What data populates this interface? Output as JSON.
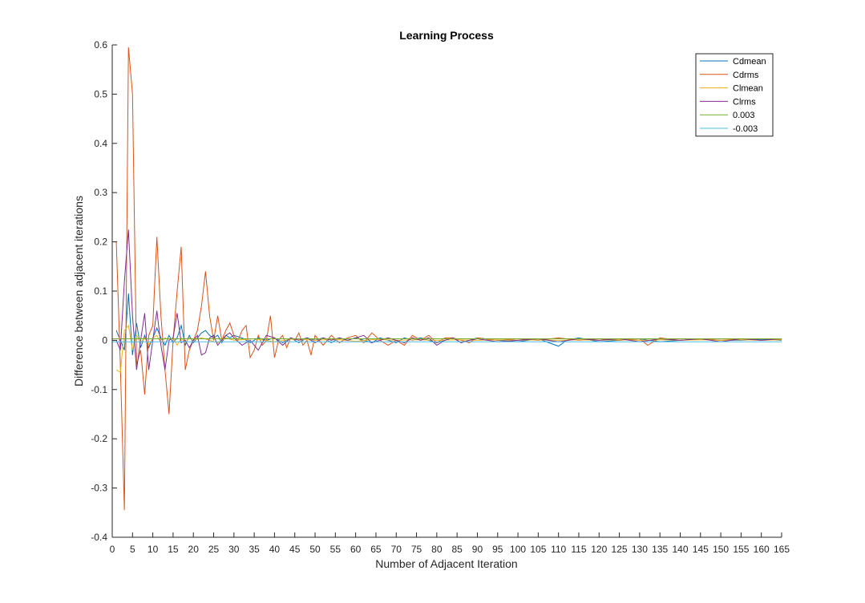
{
  "chart_data": {
    "type": "line",
    "title": "Learning Process",
    "xlabel": "Number of Adjacent Iteration",
    "ylabel": "Difference between adjacent iterations",
    "xlim": [
      0,
      165
    ],
    "ylim": [
      -0.4,
      0.6
    ],
    "xticks": [
      0,
      5,
      10,
      15,
      20,
      25,
      30,
      35,
      40,
      45,
      50,
      55,
      60,
      65,
      70,
      75,
      80,
      85,
      90,
      95,
      100,
      105,
      110,
      115,
      120,
      125,
      130,
      135,
      140,
      145,
      150,
      155,
      160,
      165
    ],
    "yticks": [
      -0.4,
      -0.3,
      -0.2,
      -0.1,
      0,
      0.1,
      0.2,
      0.3,
      0.4,
      0.5,
      0.6
    ],
    "legend_position": "top-right",
    "grid": false,
    "series": [
      {
        "name": "Cdmean",
        "color": "#0072BD",
        "x": [
          1,
          2,
          3,
          4,
          5,
          6,
          7,
          8,
          9,
          10,
          11,
          12,
          13,
          14,
          15,
          16,
          17,
          18,
          19,
          20,
          21,
          22,
          23,
          24,
          25,
          26,
          27,
          28,
          29,
          30,
          32,
          34,
          36,
          38,
          40,
          42,
          44,
          46,
          48,
          50,
          52,
          54,
          56,
          58,
          60,
          62,
          64,
          66,
          68,
          70,
          72,
          74,
          76,
          78,
          80,
          82,
          84,
          86,
          88,
          90,
          95,
          100,
          105,
          110,
          112,
          115,
          120,
          125,
          130,
          135,
          140,
          145,
          150,
          155,
          160,
          165
        ],
        "y": [
          0.02,
          0.0,
          -0.02,
          0.095,
          -0.03,
          0.035,
          -0.015,
          0.01,
          -0.015,
          0.005,
          0.025,
          0.005,
          -0.01,
          0.01,
          -0.005,
          0.005,
          0.03,
          -0.01,
          0.01,
          -0.005,
          0.005,
          0.015,
          0.02,
          0.01,
          0.005,
          0.01,
          -0.005,
          0.01,
          0.005,
          0.01,
          0.005,
          -0.005,
          0.005,
          0.0,
          0.005,
          -0.005,
          0.005,
          -0.005,
          0.005,
          0.0,
          0.005,
          -0.005,
          0.005,
          0.0,
          0.005,
          0.0,
          -0.005,
          0.005,
          0.0,
          -0.005,
          0.005,
          0.0,
          0.005,
          0.0,
          -0.005,
          0.0,
          0.005,
          -0.005,
          0.0,
          0.005,
          0.0,
          -0.003,
          0.003,
          -0.012,
          0.0,
          0.005,
          -0.003,
          0.0,
          0.003,
          -0.003,
          0.0,
          0.003,
          0.0,
          0.0,
          0.002,
          0.0
        ]
      },
      {
        "name": "Cdrms",
        "color": "#D95319",
        "x": [
          1,
          2,
          3,
          4,
          5,
          6,
          7,
          8,
          9,
          10,
          11,
          12,
          13,
          14,
          15,
          16,
          17,
          18,
          19,
          20,
          21,
          22,
          23,
          24,
          25,
          26,
          27,
          28,
          29,
          30,
          31,
          32,
          33,
          34,
          35,
          36,
          37,
          38,
          39,
          40,
          41,
          42,
          43,
          44,
          45,
          46,
          47,
          48,
          49,
          50,
          52,
          54,
          56,
          58,
          60,
          62,
          64,
          66,
          68,
          70,
          72,
          74,
          76,
          78,
          80,
          82,
          84,
          86,
          88,
          90,
          95,
          100,
          105,
          110,
          115,
          120,
          125,
          130,
          132,
          135,
          140,
          145,
          150,
          155,
          160,
          165
        ],
        "y": [
          0.2,
          -0.05,
          -0.345,
          0.595,
          0.5,
          -0.05,
          -0.02,
          -0.11,
          0.01,
          0.03,
          0.21,
          0.05,
          -0.06,
          -0.15,
          0.0,
          0.1,
          0.19,
          -0.06,
          -0.02,
          0.0,
          0.02,
          0.07,
          0.14,
          0.05,
          0.0,
          0.05,
          0.0,
          0.02,
          0.035,
          0.01,
          0.0,
          0.02,
          0.03,
          -0.035,
          -0.02,
          0.01,
          -0.01,
          0.0,
          0.05,
          -0.035,
          0.0,
          0.01,
          -0.015,
          0.005,
          0.0,
          0.015,
          -0.01,
          0.0,
          -0.03,
          0.01,
          -0.01,
          0.01,
          -0.005,
          0.005,
          0.01,
          -0.005,
          0.015,
          0.0,
          -0.01,
          0.0,
          -0.01,
          0.01,
          0.0,
          0.01,
          -0.005,
          0.005,
          0.005,
          0.0,
          -0.005,
          0.005,
          0.0,
          0.003,
          0.0,
          0.005,
          0.0,
          0.003,
          0.0,
          0.003,
          -0.01,
          0.005,
          0.0,
          0.003,
          0.0,
          0.003,
          0.0,
          0.002
        ]
      },
      {
        "name": "Clmean",
        "color": "#EDB120",
        "x": [
          1,
          2,
          3,
          4,
          5,
          6,
          7,
          8,
          9,
          10,
          11,
          12,
          13,
          14,
          15,
          16,
          17,
          18,
          19,
          20,
          22,
          24,
          26,
          28,
          30,
          35,
          40,
          45,
          50,
          55,
          60,
          65,
          70,
          75,
          80,
          85,
          90,
          95,
          100,
          105,
          110,
          115,
          120,
          125,
          130,
          135,
          140,
          145,
          150,
          155,
          160,
          165
        ],
        "y": [
          -0.06,
          -0.065,
          0.02,
          0.03,
          -0.02,
          0.01,
          -0.005,
          0.005,
          -0.01,
          0.005,
          0.01,
          -0.005,
          0.005,
          0.0,
          0.005,
          -0.01,
          0.005,
          -0.005,
          0.005,
          0.0,
          0.005,
          0.0,
          -0.005,
          0.005,
          0.0,
          0.003,
          -0.003,
          0.003,
          0.0,
          0.002,
          -0.002,
          0.002,
          0.0,
          0.001,
          0.0,
          0.001,
          0.0,
          0.001,
          0.0,
          0.001,
          0.0,
          0.001,
          0.0,
          0.001,
          0.0,
          0.001,
          0.0,
          0.001,
          0.0,
          0.001,
          0.0,
          0.001
        ]
      },
      {
        "name": "Clrms",
        "color": "#7E2F8E",
        "x": [
          1,
          2,
          3,
          4,
          5,
          6,
          7,
          8,
          9,
          10,
          11,
          12,
          13,
          14,
          15,
          16,
          17,
          18,
          19,
          20,
          21,
          22,
          23,
          24,
          25,
          26,
          27,
          28,
          29,
          30,
          32,
          34,
          36,
          38,
          40,
          42,
          44,
          46,
          48,
          50,
          52,
          54,
          56,
          58,
          60,
          62,
          64,
          66,
          68,
          70,
          72,
          74,
          76,
          78,
          80,
          82,
          84,
          86,
          88,
          90,
          95,
          100,
          105,
          110,
          115,
          120,
          125,
          130,
          135,
          140,
          145,
          150,
          155,
          160,
          165
        ],
        "y": [
          0.0,
          -0.02,
          0.12,
          0.225,
          0.05,
          -0.06,
          0.0,
          0.055,
          -0.06,
          0.0,
          0.06,
          -0.01,
          -0.06,
          0.0,
          0.005,
          0.055,
          -0.005,
          0.0,
          -0.015,
          0.0,
          0.01,
          -0.03,
          -0.025,
          0.005,
          0.01,
          -0.01,
          0.0,
          0.01,
          0.015,
          0.005,
          -0.01,
          0.0,
          -0.02,
          0.01,
          0.005,
          -0.01,
          0.005,
          0.0,
          0.005,
          -0.005,
          0.005,
          0.0,
          0.005,
          0.0,
          0.005,
          0.01,
          -0.005,
          0.0,
          0.005,
          0.0,
          -0.005,
          0.005,
          0.0,
          0.005,
          -0.01,
          0.0,
          0.005,
          -0.005,
          0.0,
          0.003,
          -0.003,
          0.0,
          0.003,
          -0.003,
          0.003,
          0.0,
          0.003,
          -0.003,
          0.003,
          0.0,
          0.003,
          -0.003,
          0.003,
          0.0,
          0.003
        ]
      },
      {
        "name": "0.003",
        "color": "#77AC30",
        "x": [
          0,
          165
        ],
        "y": [
          0.003,
          0.003
        ]
      },
      {
        "name": "-0.003",
        "color": "#4DBEEE",
        "x": [
          0,
          165
        ],
        "y": [
          -0.003,
          -0.003
        ]
      }
    ]
  }
}
